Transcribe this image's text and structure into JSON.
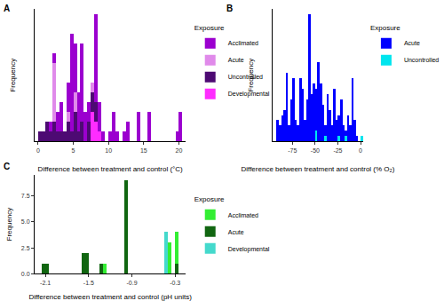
{
  "chart_data": [
    {
      "type": "histogram",
      "title": "A",
      "stacked": true,
      "grid": false,
      "tick_labels": "x",
      "legend": "right",
      "legend_title": "Exposure",
      "x_label": "Difference between treatment and control (°C)",
      "y_label": "Frequency",
      "bins": [
        0,
        0.5,
        1,
        1.5,
        2,
        2.5,
        3,
        3.5,
        4,
        4.5,
        5,
        5.5,
        6,
        6.5,
        7,
        7.5,
        8,
        8.5,
        9,
        9.5,
        10,
        10.5,
        11,
        11.5,
        12,
        12.5,
        13,
        13.5,
        14,
        14.5,
        15,
        15.5,
        16,
        16.5,
        17,
        17.5,
        18,
        18.5,
        19,
        19.5,
        20,
        20.5
      ],
      "xlim": [
        -0.5,
        21
      ],
      "xticks": [
        0,
        5,
        10,
        15,
        20
      ],
      "ylim": [
        0,
        13.5
      ],
      "series": [
        {
          "name": "Acclimated",
          "color": "#9b00cf",
          "values": [
            0,
            0,
            0,
            1,
            1,
            2,
            3,
            0,
            3,
            10,
            5,
            4,
            8,
            3,
            2,
            0,
            9,
            3,
            1,
            0,
            1,
            3,
            1,
            0,
            1,
            2,
            0,
            0,
            3,
            0,
            0,
            3,
            0,
            0,
            0,
            0,
            0,
            0,
            0,
            1,
            3
          ]
        },
        {
          "name": "Acute",
          "color": "#e08aea",
          "values": [
            0,
            0,
            0,
            0,
            6,
            0,
            0,
            0,
            1,
            0,
            2,
            0,
            0,
            0,
            0,
            1,
            0,
            0,
            0,
            0,
            0,
            0,
            0,
            0,
            0,
            0,
            0,
            0,
            0,
            0,
            0,
            0,
            0,
            0,
            0,
            0,
            0,
            0,
            0,
            0,
            0
          ]
        },
        {
          "name": "Uncontrolled",
          "color": "#4d0a73",
          "values": [
            1,
            1,
            2,
            1,
            2,
            1,
            1,
            1,
            2,
            1,
            3,
            1,
            2,
            0,
            2,
            2,
            2,
            0,
            0,
            0,
            0,
            0,
            0,
            0,
            0,
            0,
            0,
            0,
            0,
            0,
            0,
            0,
            0,
            0,
            0,
            0,
            0,
            0,
            0,
            0,
            0
          ]
        },
        {
          "name": "Developmental",
          "color": "#ff2cff",
          "values": [
            0,
            0,
            0,
            0,
            0,
            0,
            0,
            0,
            0,
            0,
            0,
            0,
            0,
            0,
            0,
            3,
            2,
            1,
            0,
            0,
            0,
            0,
            0,
            0,
            0,
            0,
            0,
            0,
            0,
            0,
            0,
            0,
            0,
            0,
            0,
            0,
            0,
            0,
            0,
            0,
            0
          ]
        }
      ]
    },
    {
      "type": "histogram",
      "title": "B",
      "stacked": true,
      "grid": false,
      "tick_labels": "x",
      "legend": "right",
      "legend_title": "Exposure",
      "x_label": "Difference between treatment and control (% O₂)",
      "y_label": "Frequency",
      "bins": [
        -95,
        -92.5,
        -90,
        -87.5,
        -85,
        -82.5,
        -80,
        -77.5,
        -75,
        -72.5,
        -70,
        -67.5,
        -65,
        -62.5,
        -60,
        -57.5,
        -55,
        -52.5,
        -50,
        -47.5,
        -45,
        -42.5,
        -40,
        -37.5,
        -35,
        -32.5,
        -30,
        -27.5,
        -25,
        -22.5,
        -20,
        -17.5,
        -15,
        -12.5,
        -10,
        -7.5,
        -5,
        -2.5,
        0,
        2.5
      ],
      "xlim": [
        -97,
        3
      ],
      "xticks": [
        -75,
        -50,
        -25,
        0
      ],
      "ylim": [
        0,
        25
      ],
      "series": [
        {
          "name": "Acute",
          "color": "#0000ff",
          "values": [
            0,
            4,
            3,
            5,
            6,
            13,
            3,
            8,
            12,
            4,
            3,
            12,
            10,
            4,
            8,
            24,
            9,
            11,
            8,
            15,
            11,
            7,
            2,
            9,
            6,
            3,
            10,
            4,
            4,
            8,
            3,
            1,
            5,
            3,
            12,
            4,
            1,
            0,
            0
          ]
        },
        {
          "name": "Uncontrolled",
          "color": "#00e5ee",
          "values": [
            0,
            0,
            0,
            0,
            0,
            0,
            0,
            0,
            0,
            0,
            0,
            0,
            0,
            0,
            0,
            0,
            0,
            0,
            2,
            0,
            0,
            0,
            1,
            0,
            0,
            0,
            0,
            0,
            1,
            0,
            0,
            1,
            0,
            0,
            0,
            0,
            0,
            0,
            1
          ]
        }
      ]
    },
    {
      "type": "histogram",
      "title": "C",
      "stacked": true,
      "grid": false,
      "legend": "right",
      "legend_title": "Exposure",
      "x_label": "Difference between treatment and control (pH units)",
      "y_label": "Frequency",
      "bins": [
        -2.15,
        -2.1,
        -2.05,
        -2,
        -1.95,
        -1.9,
        -1.85,
        -1.8,
        -1.75,
        -1.7,
        -1.65,
        -1.6,
        -1.55,
        -1.5,
        -1.45,
        -1.4,
        -1.35,
        -1.3,
        -1.25,
        -1.2,
        -1.15,
        -1.1,
        -1.05,
        -1,
        -0.95,
        -0.9,
        -0.85,
        -0.8,
        -0.75,
        -0.7,
        -0.65,
        -0.6,
        -0.55,
        -0.5,
        -0.45,
        -0.4,
        -0.35,
        -0.3,
        -0.25,
        -0.2
      ],
      "xlim": [
        -2.25,
        -0.15
      ],
      "xticks": [
        -2.1,
        -1.5,
        -0.9,
        -0.3
      ],
      "ylim": [
        0,
        9.5
      ],
      "yticks": [
        {
          "value": 0,
          "label": "0.0"
        },
        {
          "value": 2.5,
          "label": "2.5"
        },
        {
          "value": 5,
          "label": "5.0"
        },
        {
          "value": 7.5,
          "label": "7.5"
        }
      ],
      "series": [
        {
          "name": "Acclimated",
          "color": "#33ee33",
          "values": [
            0,
            0,
            0,
            0,
            0,
            0,
            0,
            0,
            0,
            0,
            0,
            0,
            0,
            0,
            0,
            0,
            0,
            1,
            0,
            0,
            0,
            0,
            0,
            0,
            0,
            0,
            0,
            0,
            0,
            0,
            0,
            0,
            0,
            0,
            0,
            3,
            0,
            3,
            0
          ]
        },
        {
          "name": "Acute",
          "color": "#116611",
          "values": [
            1,
            1,
            0,
            0,
            0,
            0,
            0,
            0,
            0,
            0,
            0,
            2,
            2,
            0,
            0,
            0,
            1,
            0,
            0,
            0,
            0,
            0,
            0,
            9,
            0,
            0,
            0,
            0,
            0,
            0,
            0,
            0,
            0,
            0,
            0,
            0,
            0,
            1,
            0
          ]
        },
        {
          "name": "Developmental",
          "color": "#44d9cc",
          "values": [
            0,
            0,
            0,
            0,
            0,
            0,
            0,
            0,
            0,
            0,
            0,
            0,
            0,
            0,
            0,
            0,
            0,
            0,
            0,
            0,
            0,
            0,
            0,
            0,
            0,
            0,
            0,
            0,
            0,
            0,
            0,
            0,
            0,
            0,
            4,
            0,
            0,
            0,
            0
          ]
        }
      ]
    }
  ]
}
